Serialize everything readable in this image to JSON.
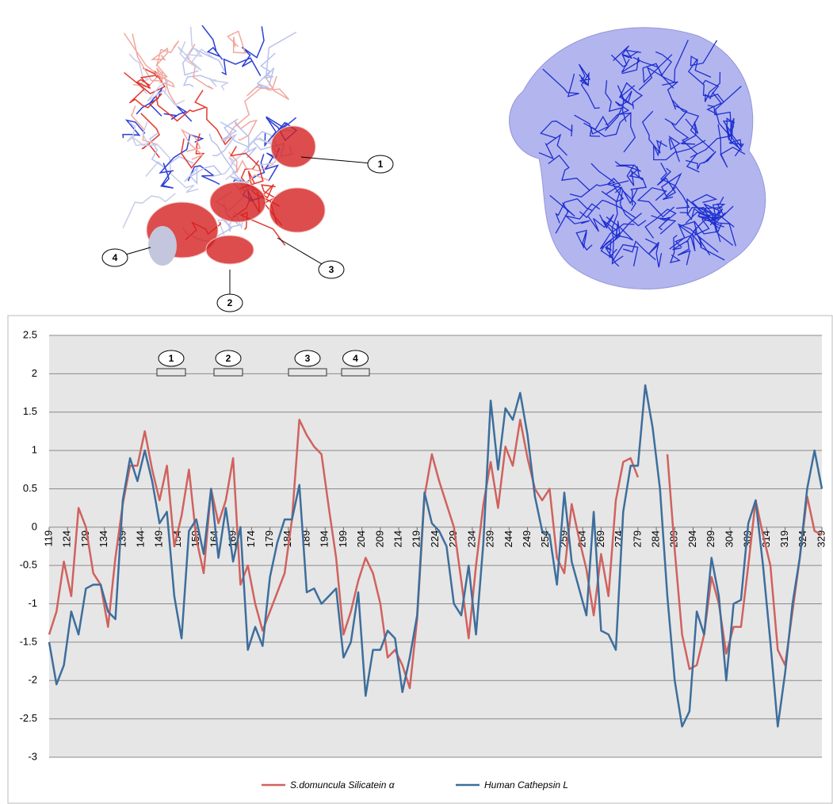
{
  "structure_panel": {
    "callouts": [
      "1",
      "2",
      "3",
      "4"
    ]
  },
  "chart_data": {
    "type": "line",
    "annotations": [
      "1",
      "2",
      "3",
      "4"
    ],
    "x": [
      119,
      121,
      123,
      125,
      127,
      129,
      131,
      133,
      135,
      137,
      139,
      141,
      143,
      145,
      147,
      149,
      151,
      153,
      155,
      157,
      159,
      161,
      163,
      165,
      167,
      169,
      171,
      173,
      175,
      177,
      179,
      181,
      183,
      185,
      187,
      189,
      191,
      193,
      195,
      197,
      199,
      201,
      203,
      205,
      207,
      209,
      211,
      213,
      215,
      217,
      219,
      221,
      223,
      225,
      227,
      229,
      231,
      233,
      235,
      237,
      239,
      241,
      243,
      245,
      247,
      249,
      251,
      253,
      255,
      257,
      259,
      261,
      263,
      265,
      267,
      269,
      271,
      273,
      275,
      277,
      279,
      281,
      283,
      285,
      287,
      289,
      291,
      293,
      295,
      297,
      299,
      301,
      303,
      305,
      307,
      309,
      311,
      313,
      315,
      317,
      319,
      321,
      323,
      325,
      327,
      329
    ],
    "series": [
      {
        "name": "S.domuncula Silicatein α",
        "color": "#d0625e",
        "values": [
          -1.4,
          -1.1,
          -0.45,
          -0.9,
          0.25,
          0.0,
          -0.6,
          -0.75,
          -1.3,
          -0.4,
          0.3,
          0.8,
          0.8,
          1.25,
          0.75,
          0.35,
          0.8,
          -0.25,
          0.15,
          0.75,
          -0.15,
          -0.6,
          0.5,
          0.05,
          0.35,
          0.9,
          -0.75,
          -0.5,
          -1.0,
          -1.35,
          -1.1,
          -0.85,
          -0.6,
          0.1,
          1.4,
          1.2,
          1.05,
          0.95,
          0.25,
          -0.4,
          -1.4,
          -1.1,
          -0.7,
          -0.4,
          -0.6,
          -1.0,
          -1.7,
          -1.6,
          -1.8,
          -2.1,
          -1.2,
          0.4,
          0.95,
          0.6,
          0.3,
          0.0,
          -0.7,
          -1.45,
          -0.5,
          0.3,
          0.85,
          0.25,
          1.05,
          0.8,
          1.4,
          0.9,
          0.5,
          0.35,
          0.5,
          -0.4,
          -0.6,
          0.3,
          -0.15,
          -0.55,
          -1.15,
          -0.35,
          -0.9,
          0.35,
          0.85,
          0.9,
          0.65,
          null,
          null,
          null,
          0.95,
          -0.3,
          -1.4,
          -1.85,
          -1.8,
          -1.4,
          -0.65,
          -1.0,
          -1.65,
          -1.3,
          -1.3,
          -0.5,
          0.35,
          -0.1,
          -0.5,
          -1.6,
          -1.8,
          -1.1,
          -0.4,
          0.4,
          -0.05,
          -0.1
        ]
      },
      {
        "name": "Human Cathepsin L",
        "color": "#3d6e9c",
        "values": [
          -1.5,
          -2.05,
          -1.8,
          -1.1,
          -1.4,
          -0.8,
          -0.75,
          -0.75,
          -1.1,
          -1.2,
          0.35,
          0.9,
          0.6,
          1.0,
          0.6,
          0.05,
          0.2,
          -0.9,
          -1.45,
          -0.05,
          0.1,
          -0.35,
          0.5,
          -0.4,
          0.25,
          -0.45,
          0.0,
          -1.6,
          -1.3,
          -1.55,
          -0.65,
          -0.2,
          0.1,
          0.1,
          0.55,
          -0.85,
          -0.8,
          -1.0,
          -0.9,
          -0.8,
          -1.7,
          -1.5,
          -0.85,
          -2.2,
          -1.6,
          -1.6,
          -1.35,
          -1.45,
          -2.15,
          -1.7,
          -1.15,
          0.45,
          0.05,
          -0.05,
          -0.25,
          -1.0,
          -1.15,
          -0.5,
          -1.4,
          -0.2,
          1.65,
          0.75,
          1.55,
          1.4,
          1.75,
          1.2,
          0.4,
          -0.05,
          -0.1,
          -0.75,
          0.45,
          -0.45,
          -0.8,
          -1.15,
          0.2,
          -1.35,
          -1.4,
          -1.6,
          0.2,
          0.8,
          0.8,
          1.85,
          1.3,
          0.5,
          -0.9,
          -2.0,
          -2.6,
          -2.4,
          -1.1,
          -1.4,
          -0.4,
          -0.9,
          -2.0,
          -1.0,
          -0.95,
          0.05,
          0.35,
          -0.5,
          -1.5,
          -2.6,
          -1.9,
          -1.0,
          -0.4,
          0.5,
          1.0,
          0.5
        ]
      }
    ],
    "xlim": [
      119,
      329
    ],
    "xticks": [
      119,
      124,
      129,
      134,
      139,
      144,
      149,
      154,
      159,
      164,
      169,
      174,
      179,
      184,
      189,
      194,
      199,
      204,
      209,
      214,
      219,
      224,
      229,
      234,
      239,
      244,
      249,
      254,
      259,
      264,
      269,
      274,
      279,
      284,
      289,
      294,
      299,
      304,
      309,
      314,
      319,
      324,
      329
    ],
    "ylim": [
      -3,
      2.5
    ],
    "yticks": [
      -3,
      -2.5,
      -2,
      -1.5,
      -1,
      -0.5,
      0,
      0.5,
      1,
      1.5,
      2,
      2.5
    ],
    "grid": true,
    "legend": "bottom"
  }
}
